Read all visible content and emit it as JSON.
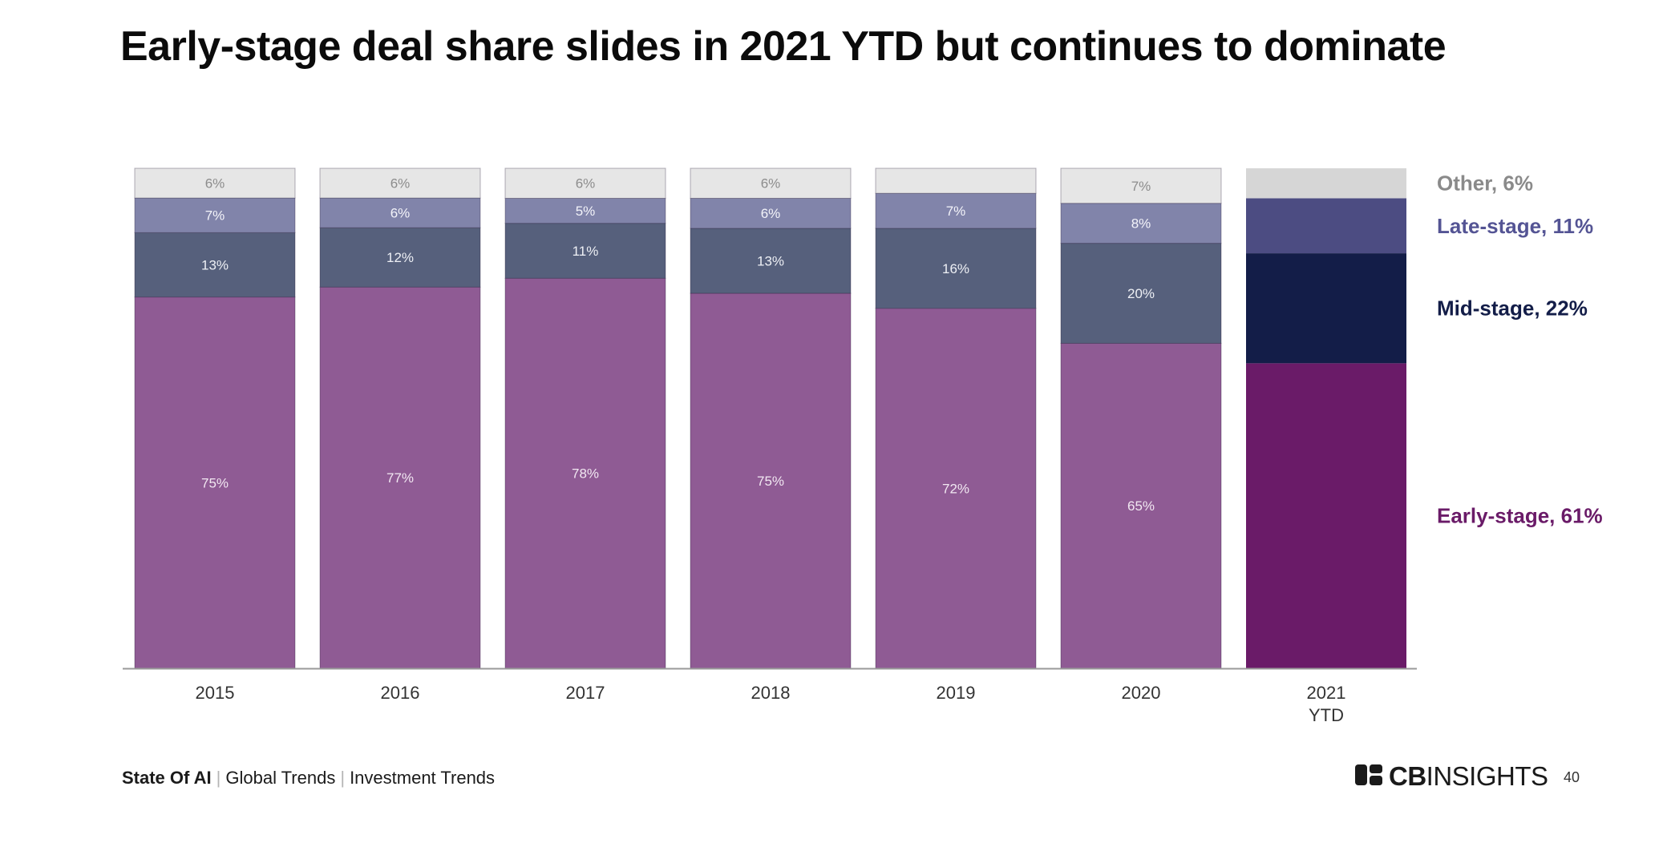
{
  "title": "Early-stage deal share slides in 2021 YTD but continues to dominate",
  "footer": {
    "report": "State Of AI",
    "section": "Global Trends",
    "subsection": "Investment Trends",
    "separator": "|"
  },
  "brand": {
    "logo_icon": "cb-insights-logo-icon",
    "logo_strong": "CB",
    "logo_light": "INSIGHTS"
  },
  "page_number": "40",
  "chart_data": {
    "type": "bar",
    "stacked": true,
    "normalized": true,
    "title": "Early-stage deal share slides in 2021 YTD but continues to dominate",
    "xlabel": "",
    "ylabel": "",
    "ylim": [
      0,
      100
    ],
    "grid": false,
    "legend_position": "right",
    "categories": [
      "2015",
      "2016",
      "2017",
      "2018",
      "2019",
      "2020",
      "2021 YTD"
    ],
    "series": [
      {
        "name": "Early-stage",
        "values": [
          75,
          77,
          78,
          75,
          72,
          65,
          61
        ],
        "labels": [
          "75%",
          "77%",
          "78%",
          "75%",
          "72%",
          "65%",
          ""
        ],
        "color": "#8f5b94",
        "highlight_color": "#6a1b68",
        "label_color": "#f2e8f2"
      },
      {
        "name": "Mid-stage",
        "values": [
          13,
          12,
          11,
          13,
          16,
          20,
          22
        ],
        "labels": [
          "13%",
          "12%",
          "11%",
          "13%",
          "16%",
          "20%",
          ""
        ],
        "color": "#56607c",
        "highlight_color": "#131d48",
        "label_color": "#eef0f5"
      },
      {
        "name": "Late-stage",
        "values": [
          7,
          6,
          5,
          6,
          7,
          8,
          11
        ],
        "labels": [
          "7%",
          "6%",
          "5%",
          "6%",
          "7%",
          "8%",
          ""
        ],
        "color": "#8184aa",
        "highlight_color": "#4c4c82",
        "label_color": "#f4f4fa"
      },
      {
        "name": "Other",
        "values": [
          6,
          6,
          6,
          6,
          5,
          7,
          6
        ],
        "labels": [
          "6%",
          "6%",
          "6%",
          "6%",
          "",
          "7%",
          ""
        ],
        "color": "#e6e6e6",
        "highlight_color": "#d6d6d6",
        "label_color": "#8c8c8c"
      }
    ],
    "legend": [
      {
        "series": "Other",
        "text": "Other, 6%",
        "color": "#8a8a8a"
      },
      {
        "series": "Late-stage",
        "text": "Late-stage, 11%",
        "color": "#545494"
      },
      {
        "series": "Mid-stage",
        "text": "Mid-stage, 22%",
        "color": "#131d48"
      },
      {
        "series": "Early-stage",
        "text": "Early-stage, 61%",
        "color": "#6a1b68"
      }
    ]
  }
}
